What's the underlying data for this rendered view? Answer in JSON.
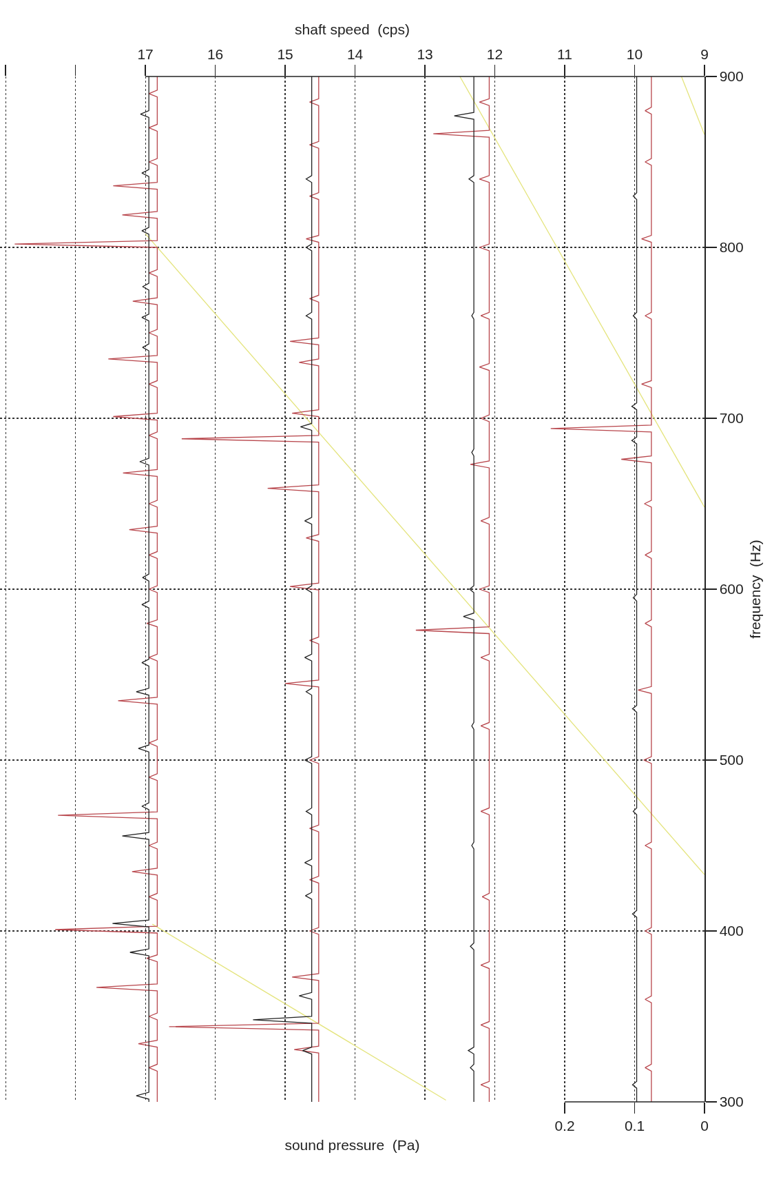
{
  "chart_data": {
    "type": "line",
    "xlabel": "sound pressure  (Pa)",
    "x2label": "shaft speed  (cps)",
    "ylabel": "frequency  (Hz)",
    "xlim": [
      1.008,
      0
    ],
    "xticks": [
      0,
      0.1,
      0.2
    ],
    "x2lim": [
      19.08,
      9
    ],
    "x2ticks": [
      9,
      10,
      11,
      12,
      13,
      14,
      15,
      16,
      17,
      {
        "value": 18,
        "label": null
      },
      {
        "value": 19,
        "label": null
      }
    ],
    "ylim": [
      300,
      900
    ],
    "yticks": [
      300,
      400,
      500,
      600,
      700,
      800,
      900
    ],
    "grid": true,
    "marker": "none",
    "line_style": "solid",
    "series": [
      {
        "color": "#e4e47c",
        "axis": "x2",
        "values": [
          301,
          404
        ],
        "x": [
          12.7,
          16.9
        ]
      },
      {
        "color": "#e4e47c",
        "axis": "x2",
        "values": [
          433,
          808
        ],
        "x": [
          9,
          17
        ]
      },
      {
        "color": "#e4e47c",
        "axis": "x2",
        "values": [
          648,
          900
        ],
        "x": [
          9,
          12.5
        ]
      },
      {
        "color": "#e4e47c",
        "axis": "x2",
        "values": [
          866,
          900
        ],
        "x": [
          9,
          9.33
        ]
      },
      {
        "color": "#b8464c",
        "axis": "x2",
        "values": [
          300,
          318,
          320,
          322,
          332,
          334,
          336,
          348,
          350,
          352,
          365,
          367,
          369,
          382,
          384,
          386,
          398.8,
          400.8,
          402.8,
          418,
          420,
          422,
          432.7,
          434.7,
          436.7,
          448,
          450,
          452,
          465.7,
          467.7,
          469.7,
          488,
          490,
          492,
          508,
          510,
          512,
          532.7,
          534.7,
          536.7,
          558,
          560,
          562,
          578,
          580,
          582,
          598,
          600,
          602,
          618,
          620,
          622,
          632.8,
          634.8,
          636.8,
          648,
          650,
          652,
          666,
          668,
          670,
          688,
          690,
          692,
          699,
          701,
          703,
          718,
          720,
          722,
          732.7,
          734.7,
          736.7,
          748,
          750,
          752,
          766.5,
          768.5,
          770.5,
          783,
          785,
          787,
          800,
          802,
          804,
          817,
          819,
          821,
          834,
          836,
          838,
          848,
          850,
          852,
          868,
          870,
          872,
          888,
          890,
          892,
          900
        ],
        "x": [
          16.83,
          16.83,
          16.95,
          16.83,
          16.83,
          17.1,
          16.83,
          16.83,
          16.95,
          16.83,
          16.83,
          17.7,
          16.83,
          16.83,
          16.98,
          16.83,
          16.83,
          18.29,
          16.83,
          16.83,
          16.95,
          16.83,
          16.83,
          17.19,
          16.83,
          16.83,
          16.95,
          16.83,
          16.83,
          18.25,
          16.83,
          16.83,
          16.95,
          16.83,
          16.83,
          16.95,
          16.83,
          16.83,
          17.39,
          16.83,
          16.83,
          16.95,
          16.83,
          16.83,
          16.98,
          16.83,
          16.83,
          16.95,
          16.83,
          16.83,
          16.95,
          16.83,
          16.83,
          17.23,
          16.83,
          16.83,
          16.95,
          16.83,
          16.83,
          17.32,
          16.83,
          16.83,
          16.95,
          16.83,
          16.83,
          17.46,
          16.83,
          16.83,
          16.95,
          16.83,
          16.83,
          17.53,
          16.83,
          16.83,
          16.95,
          16.83,
          16.83,
          17.18,
          16.83,
          16.83,
          16.95,
          16.83,
          16.83,
          18.87,
          16.83,
          16.83,
          17.33,
          16.83,
          16.83,
          17.46,
          16.83,
          16.83,
          16.95,
          16.83,
          16.83,
          16.95,
          16.83,
          16.83,
          16.95,
          16.83,
          16.83
        ]
      },
      {
        "color": "#222222",
        "axis": "x2",
        "values": [
          300,
          301.6,
          303.6,
          305.6,
          385.5,
          387.5,
          389.5,
          402.4,
          404.4,
          406.4,
          453.6,
          455.6,
          457.6,
          471,
          473,
          475,
          504.8,
          506.8,
          508.8,
          538,
          540,
          542,
          555,
          557,
          559,
          589,
          591,
          593,
          604.8,
          606.8,
          608.8,
          672.6,
          674.6,
          676.6,
          739.5,
          741.5,
          743.5,
          757,
          759,
          761,
          775,
          777,
          779,
          807.7,
          809.7,
          811.7,
          841.5,
          843.5,
          845.5,
          876,
          878,
          880,
          900
        ],
        "x": [
          16.95,
          16.95,
          17.13,
          16.95,
          16.95,
          17.22,
          16.95,
          16.95,
          17.47,
          16.95,
          16.95,
          17.33,
          16.95,
          16.95,
          17.05,
          16.95,
          16.95,
          17.1,
          16.95,
          16.95,
          17.13,
          16.95,
          16.95,
          17.05,
          16.95,
          16.95,
          17.05,
          16.95,
          16.95,
          17.04,
          16.95,
          16.95,
          17.08,
          16.95,
          16.95,
          17.04,
          16.95,
          16.95,
          17.05,
          16.95,
          16.95,
          17.04,
          16.95,
          16.95,
          17.05,
          16.95,
          16.95,
          17.05,
          16.95,
          16.95,
          17.07,
          16.95,
          16.95
        ]
      },
      {
        "color": "#b8464c",
        "axis": "x2",
        "values": [
          300,
          328.6,
          330.6,
          332.6,
          342,
          344,
          346,
          371,
          373,
          375,
          398,
          400,
          402,
          428,
          430,
          432,
          458,
          460,
          462,
          498,
          500,
          502,
          542.8,
          544.8,
          546.8,
          568,
          570,
          572,
          599.6,
          601.6,
          603.6,
          628,
          630,
          632,
          657,
          659,
          661,
          686,
          688,
          690,
          701,
          703,
          705,
          730.7,
          732.7,
          734.7,
          743,
          745,
          747,
          768,
          770,
          772,
          803,
          805,
          807,
          828,
          830,
          832,
          858,
          860,
          862,
          883,
          885,
          887,
          900
        ],
        "x": [
          14.52,
          14.52,
          14.87,
          14.52,
          14.52,
          16.66,
          14.52,
          14.52,
          14.9,
          14.52,
          14.52,
          14.65,
          14.52,
          14.52,
          14.65,
          14.52,
          14.52,
          14.65,
          14.52,
          14.52,
          14.65,
          14.52,
          14.52,
          15.0,
          14.52,
          14.52,
          14.65,
          14.52,
          14.52,
          14.93,
          14.52,
          14.52,
          14.7,
          14.52,
          14.52,
          15.25,
          14.52,
          14.52,
          16.48,
          14.52,
          14.52,
          14.9,
          14.52,
          14.52,
          14.8,
          14.52,
          14.52,
          14.93,
          14.52,
          14.52,
          14.65,
          14.52,
          14.52,
          14.7,
          14.52,
          14.52,
          14.65,
          14.52,
          14.52,
          14.65,
          14.52,
          14.52,
          14.65,
          14.52,
          14.52
        ]
      },
      {
        "color": "#222222",
        "axis": "x2",
        "values": [
          300,
          328,
          330,
          332,
          346,
          348,
          350,
          360,
          362,
          364,
          418.6,
          420.6,
          422.6,
          438,
          440,
          442,
          468,
          470,
          472,
          498,
          500,
          502,
          538,
          540,
          542,
          558,
          560,
          562,
          598,
          600,
          602,
          638,
          640,
          642,
          693,
          695,
          697,
          758,
          760,
          762,
          798,
          800,
          802,
          838,
          840,
          842,
          900
        ],
        "x": [
          14.62,
          14.62,
          14.75,
          14.62,
          14.62,
          15.46,
          14.62,
          14.62,
          14.8,
          14.62,
          14.62,
          14.71,
          14.62,
          14.62,
          14.72,
          14.62,
          14.62,
          14.7,
          14.62,
          14.62,
          14.72,
          14.62,
          14.62,
          14.7,
          14.62,
          14.62,
          14.72,
          14.62,
          14.62,
          14.7,
          14.62,
          14.62,
          14.72,
          14.62,
          14.62,
          14.78,
          14.62,
          14.62,
          14.7,
          14.62,
          14.62,
          14.7,
          14.62,
          14.62,
          14.7,
          14.62,
          14.62
        ]
      },
      {
        "color": "#b8464c",
        "axis": "x2",
        "values": [
          300,
          308,
          310,
          312,
          343,
          345,
          347,
          378,
          380,
          382,
          418,
          420,
          422,
          468,
          470,
          472,
          518,
          520,
          522,
          558,
          560,
          562,
          574,
          576,
          578,
          598,
          600,
          602,
          638,
          640,
          642,
          671,
          673,
          675,
          698,
          700,
          702,
          728,
          730,
          732,
          758,
          760,
          762,
          798,
          800,
          802,
          838,
          840,
          842,
          864.5,
          866.5,
          868.5,
          883,
          885,
          887,
          900
        ],
        "x": [
          12.08,
          12.08,
          12.2,
          12.08,
          12.08,
          12.2,
          12.08,
          12.08,
          12.2,
          12.08,
          12.08,
          12.18,
          12.08,
          12.08,
          12.2,
          12.08,
          12.08,
          12.2,
          12.08,
          12.08,
          12.2,
          12.08,
          12.08,
          13.13,
          12.08,
          12.08,
          12.22,
          12.08,
          12.08,
          12.2,
          12.08,
          12.08,
          12.35,
          12.08,
          12.08,
          12.2,
          12.08,
          12.08,
          12.22,
          12.08,
          12.08,
          12.2,
          12.08,
          12.08,
          12.22,
          12.08,
          12.08,
          12.22,
          12.08,
          12.08,
          12.88,
          12.08,
          12.08,
          12.22,
          12.08,
          12.08
        ]
      },
      {
        "color": "#222222",
        "axis": "x2",
        "values": [
          300,
          318,
          320,
          322,
          328,
          330,
          332,
          389,
          391,
          393,
          448,
          450,
          452,
          518,
          520,
          522,
          582,
          584,
          586,
          598,
          600,
          602,
          678,
          680,
          682,
          758,
          760,
          762,
          838,
          840,
          842,
          875,
          877,
          879,
          900
        ],
        "x": [
          12.3,
          12.3,
          12.35,
          12.3,
          12.3,
          12.38,
          12.3,
          12.3,
          12.35,
          12.3,
          12.3,
          12.33,
          12.3,
          12.3,
          12.33,
          12.3,
          12.3,
          12.45,
          12.3,
          12.3,
          12.36,
          12.3,
          12.3,
          12.33,
          12.3,
          12.3,
          12.33,
          12.3,
          12.3,
          12.37,
          12.3,
          12.3,
          12.58,
          12.3,
          12.3
        ]
      },
      {
        "color": "#b8464c",
        "axis": "x2",
        "values": [
          300,
          318,
          320,
          322,
          358,
          360,
          362,
          398,
          400,
          402,
          448,
          450,
          452,
          498,
          500,
          502,
          539,
          541,
          543,
          578,
          580,
          582,
          618,
          620,
          622,
          648,
          650,
          652,
          674,
          676,
          678,
          692,
          694,
          696,
          718,
          720,
          722,
          758,
          760,
          762,
          803,
          805,
          807,
          848,
          850,
          852,
          878,
          880,
          882,
          900
        ],
        "x": [
          9.76,
          9.76,
          9.85,
          9.76,
          9.76,
          9.85,
          9.76,
          9.76,
          9.85,
          9.76,
          9.76,
          9.85,
          9.76,
          9.76,
          9.87,
          9.76,
          9.76,
          9.95,
          9.76,
          9.76,
          9.85,
          9.76,
          9.76,
          9.85,
          9.76,
          9.76,
          9.86,
          9.76,
          9.76,
          10.19,
          9.76,
          9.76,
          11.2,
          9.76,
          9.76,
          9.9,
          9.76,
          9.76,
          9.85,
          9.76,
          9.76,
          9.9,
          9.76,
          9.76,
          9.85,
          9.76,
          9.76,
          9.85,
          9.76,
          9.76
        ]
      },
      {
        "color": "#222222",
        "axis": "x2",
        "values": [
          300,
          308,
          310,
          312,
          408,
          410,
          412,
          468,
          470,
          472,
          528,
          530,
          532,
          593,
          595,
          597,
          685,
          687,
          689,
          705,
          707,
          709,
          758,
          760,
          762,
          828,
          830,
          832,
          900
        ],
        "x": [
          9.97,
          9.97,
          10.03,
          9.97,
          9.97,
          10.03,
          9.97,
          9.97,
          10.02,
          9.97,
          9.97,
          10.03,
          9.97,
          9.97,
          10.02,
          9.97,
          9.97,
          10.04,
          9.97,
          9.97,
          10.04,
          9.97,
          9.97,
          10.02,
          9.97,
          9.97,
          10.02,
          9.97,
          9.97
        ]
      }
    ]
  }
}
